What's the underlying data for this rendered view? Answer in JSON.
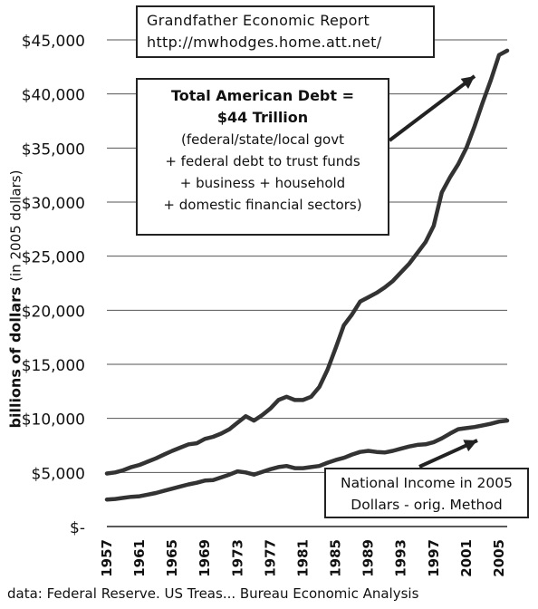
{
  "chart_data": {
    "type": "line",
    "ylabel": "billions of dollars",
    "ylabel_sub": "(in 2005 dollars)",
    "ylim": [
      0,
      45000
    ],
    "yticks": [
      {
        "value": 0,
        "label": "$-"
      },
      {
        "value": 5000,
        "label": "$5,000"
      },
      {
        "value": 10000,
        "label": "$10,000"
      },
      {
        "value": 15000,
        "label": "$15,000"
      },
      {
        "value": 20000,
        "label": "$20,000"
      },
      {
        "value": 25000,
        "label": "$25,000"
      },
      {
        "value": 30000,
        "label": "$30,000"
      },
      {
        "value": 35000,
        "label": "$35,000"
      },
      {
        "value": 40000,
        "label": "$40,000"
      },
      {
        "value": 45000,
        "label": "$45,000"
      }
    ],
    "xlim": [
      1957,
      2006
    ],
    "xticks": [
      "1957",
      "1961",
      "1965",
      "1969",
      "1973",
      "1977",
      "1981",
      "1985",
      "1989",
      "1993",
      "1997",
      "2001",
      "2005"
    ],
    "grid": "horizontal",
    "series": [
      {
        "name": "Total American Debt",
        "color": "#333333",
        "x": [
          1957,
          1958,
          1959,
          1960,
          1961,
          1962,
          1963,
          1964,
          1965,
          1966,
          1967,
          1968,
          1969,
          1970,
          1971,
          1972,
          1973,
          1974,
          1975,
          1976,
          1977,
          1978,
          1979,
          1980,
          1981,
          1982,
          1983,
          1984,
          1985,
          1986,
          1987,
          1988,
          1989,
          1990,
          1991,
          1992,
          1993,
          1994,
          1995,
          1996,
          1997,
          1998,
          1999,
          2000,
          2001,
          2002,
          2003,
          2004,
          2005,
          2006
        ],
        "values": [
          4900,
          5000,
          5200,
          5500,
          5700,
          6000,
          6300,
          6650,
          7000,
          7300,
          7600,
          7700,
          8100,
          8300,
          8600,
          9000,
          9600,
          10200,
          9800,
          10300,
          10900,
          11700,
          12000,
          11700,
          11700,
          12000,
          12900,
          14500,
          16500,
          18600,
          19600,
          20800,
          21200,
          21600,
          22100,
          22700,
          23500,
          24300,
          25300,
          26300,
          27800,
          30900,
          32300,
          33500,
          35000,
          37000,
          39200,
          41300,
          43600,
          44000
        ]
      },
      {
        "name": "National Income in 2005 Dollars - orig. Method",
        "color": "#333333",
        "x": [
          1957,
          1958,
          1959,
          1960,
          1961,
          1962,
          1963,
          1964,
          1965,
          1966,
          1967,
          1968,
          1969,
          1970,
          1971,
          1972,
          1973,
          1974,
          1975,
          1976,
          1977,
          1978,
          1979,
          1980,
          1981,
          1982,
          1983,
          1984,
          1985,
          1986,
          1987,
          1988,
          1989,
          1990,
          1991,
          1992,
          1993,
          1994,
          1995,
          1996,
          1997,
          1998,
          1999,
          2000,
          2001,
          2002,
          2003,
          2004,
          2005,
          2006
        ],
        "values": [
          2500,
          2550,
          2650,
          2750,
          2800,
          2950,
          3100,
          3300,
          3500,
          3700,
          3900,
          4050,
          4250,
          4300,
          4550,
          4800,
          5100,
          5000,
          4800,
          5050,
          5300,
          5500,
          5600,
          5400,
          5400,
          5500,
          5600,
          5900,
          6150,
          6350,
          6650,
          6900,
          7000,
          6900,
          6850,
          7000,
          7200,
          7400,
          7550,
          7600,
          7800,
          8150,
          8600,
          9000,
          9100,
          9200,
          9350,
          9500,
          9700,
          9800
        ]
      }
    ]
  },
  "annotations": {
    "report_title": "Grandfather Economic Report",
    "report_url": "http://mwhodges.home.att.net/",
    "debt_line1": "Total American Debt =",
    "debt_line2": "$44 Trillion",
    "debt_line3": "(federal/state/local govt",
    "debt_line4": "+ federal debt to trust funds",
    "debt_line5": "+ business + household",
    "debt_line6": "+ domestic financial sectors)",
    "income_line1": "National Income in 2005",
    "income_line2": "Dollars - orig. Method"
  },
  "footer": "data: Federal Reserve. US Treas... Bureau Economic Analysis"
}
